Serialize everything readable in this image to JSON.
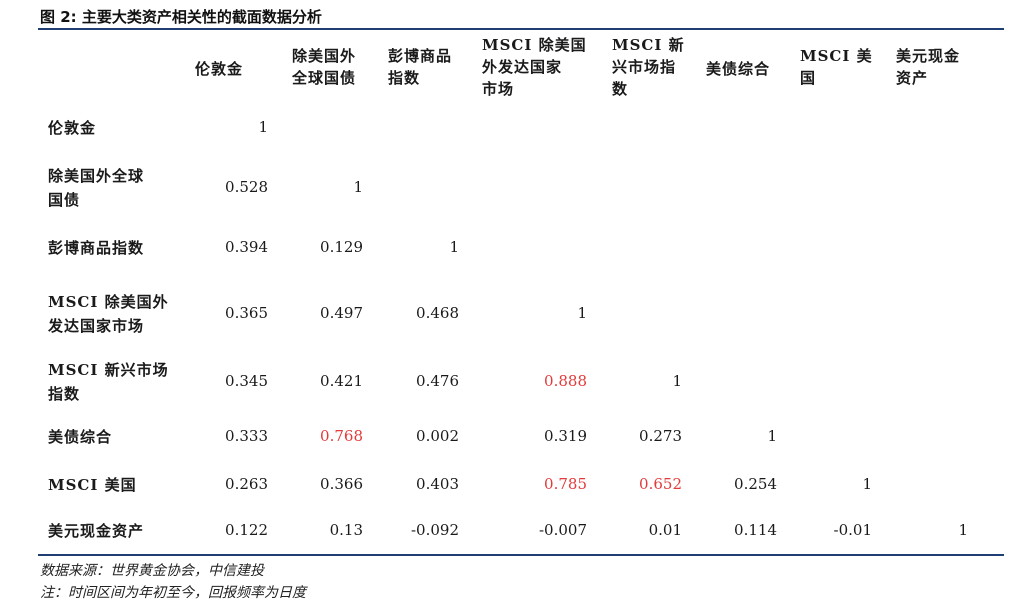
{
  "title": "图 2: 主要大类资产相关性的截面数据分析",
  "columns": [
    {
      "label_lines": [
        "伦敦金"
      ]
    },
    {
      "label_lines": [
        "除美国外",
        "全球国债"
      ]
    },
    {
      "label_lines": [
        "彭博商品",
        "指数"
      ]
    },
    {
      "label_lines": [
        "MSCI 除美国",
        "外发达国家",
        "市场"
      ]
    },
    {
      "label_lines": [
        "MSCI 新",
        "兴市场指",
        "数"
      ]
    },
    {
      "label_lines": [
        "美债综合"
      ]
    },
    {
      "label_lines": [
        "MSCI 美",
        "国"
      ]
    },
    {
      "label_lines": [
        "美元现金",
        "资产"
      ]
    }
  ],
  "rows": [
    {
      "label_lines": [
        "伦敦金"
      ],
      "values": [
        "1"
      ]
    },
    {
      "label_lines": [
        "除美国外全球",
        "国债"
      ],
      "values": [
        "0.528",
        "1"
      ]
    },
    {
      "label_lines": [
        "彭博商品指数"
      ],
      "values": [
        "0.394",
        "0.129",
        "1"
      ]
    },
    {
      "label_lines": [
        "MSCI 除美国外",
        "发达国家市场"
      ],
      "values": [
        "0.365",
        "0.497",
        "0.468",
        "1"
      ]
    },
    {
      "label_lines": [
        "MSCI 新兴市场",
        "指数"
      ],
      "values": [
        "0.345",
        "0.421",
        "0.476",
        "0.888",
        "1"
      ]
    },
    {
      "label_lines": [
        "美债综合"
      ],
      "values": [
        "0.333",
        "0.768",
        "0.002",
        "0.319",
        "0.273",
        "1"
      ]
    },
    {
      "label_lines": [
        "MSCI 美国"
      ],
      "values": [
        "0.263",
        "0.366",
        "0.403",
        "0.785",
        "0.652",
        "0.254",
        "1"
      ]
    },
    {
      "label_lines": [
        "美元现金资产"
      ],
      "values": [
        "0.122",
        "0.13",
        "-0.092",
        "-0.007",
        "0.01",
        "0.114",
        "-0.01",
        "1"
      ]
    }
  ],
  "highlights": [
    [
      4,
      3
    ],
    [
      5,
      1
    ],
    [
      6,
      3
    ],
    [
      6,
      4
    ]
  ],
  "highlight_color": "#e23b3b",
  "rule_color": "#1f3f74",
  "notes": [
    "数据来源：世界黄金协会，中信建投",
    "注：时间区间为年初至今，回报频率为日度"
  ]
}
